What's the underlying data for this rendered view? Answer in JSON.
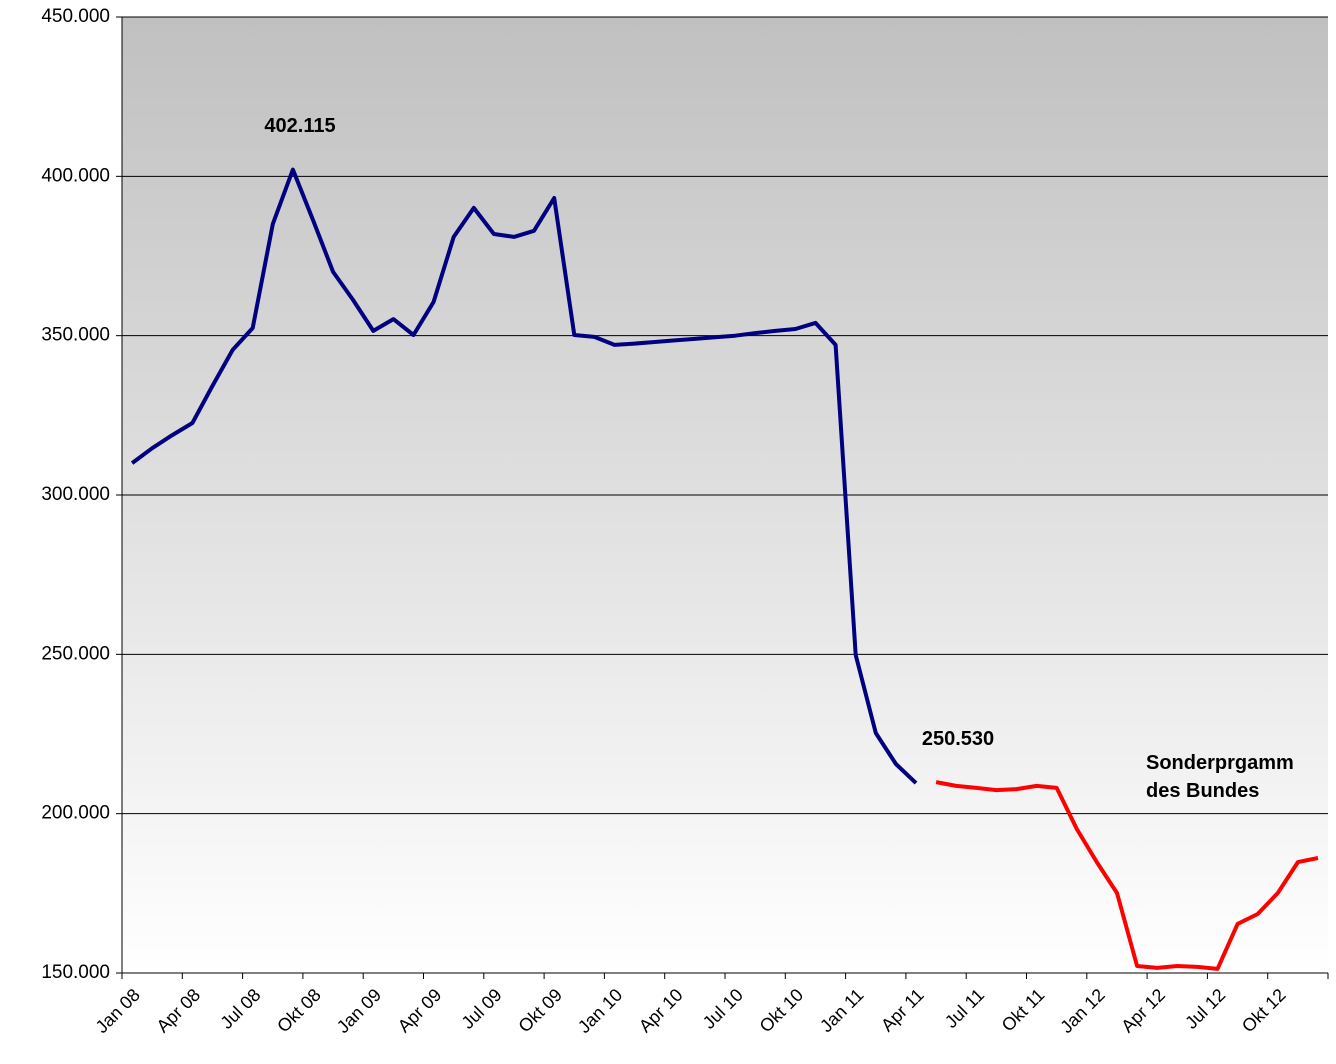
{
  "chart_data": {
    "type": "line",
    "categories": [
      "Jan 08",
      null,
      null,
      "Apr 08",
      null,
      null,
      "Jul 08",
      null,
      null,
      "Okt 08",
      null,
      null,
      "Jan 09",
      null,
      null,
      "Apr 09",
      null,
      null,
      "Jul 09",
      null,
      null,
      "Okt 09",
      null,
      null,
      "Jan 10",
      null,
      null,
      "Apr 10",
      null,
      null,
      "Jul 10",
      null,
      null,
      "Okt 10",
      null,
      null,
      "Jan 11",
      null,
      null,
      "Apr 11",
      null,
      null,
      "Jul 11",
      null,
      null,
      "Okt 11",
      null,
      null,
      "Jan 12",
      null,
      null,
      "Apr 12",
      null,
      null,
      "Jul 12",
      null,
      null,
      "Okt 12",
      null,
      null
    ],
    "series": [
      {
        "color": "#000080",
        "values": [
          310000,
          314700,
          318800,
          322600,
          334200,
          345500,
          352400,
          385000,
          402115,
          386300,
          370000,
          361200,
          351500,
          355200,
          350200,
          360600,
          381000,
          390100,
          381900,
          381000,
          382900,
          393200,
          350200,
          349600,
          347100,
          347500,
          348000,
          348500,
          349000,
          349500,
          350000,
          350800,
          351500,
          352100,
          354000,
          347100,
          249800,
          225300,
          215600,
          209600,
          null,
          null,
          null,
          null,
          null,
          null,
          null,
          null,
          null,
          null,
          null,
          null,
          null,
          null,
          null,
          null,
          null,
          null,
          null,
          null
        ]
      },
      {
        "color": "#ff0000",
        "values": [
          null,
          null,
          null,
          null,
          null,
          null,
          null,
          null,
          null,
          null,
          null,
          null,
          null,
          null,
          null,
          null,
          null,
          null,
          null,
          null,
          null,
          null,
          null,
          null,
          null,
          null,
          null,
          null,
          null,
          null,
          null,
          null,
          null,
          null,
          null,
          null,
          null,
          null,
          null,
          null,
          209900,
          208700,
          208100,
          207400,
          207700,
          208700,
          208100,
          195200,
          184800,
          175100,
          152200,
          151600,
          152200,
          151900,
          151300,
          165400,
          168500,
          175100,
          184800,
          186100
        ]
      }
    ],
    "ylim": [
      150000,
      450000
    ],
    "yticks": [
      {
        "value": 150000,
        "label": "150.000"
      },
      {
        "value": 200000,
        "label": "200.000"
      },
      {
        "value": 250000,
        "label": "250.000"
      },
      {
        "value": 300000,
        "label": "300.000"
      },
      {
        "value": 350000,
        "label": "350.000"
      },
      {
        "value": 400000,
        "label": "400.000"
      },
      {
        "value": 450000,
        "label": "450.000"
      }
    ],
    "grid": true,
    "annotations": [
      {
        "text": "402.115"
      },
      {
        "text": "250.530"
      },
      {
        "lines": [
          "Sonderprgamm",
          "des Bundes"
        ]
      }
    ]
  }
}
